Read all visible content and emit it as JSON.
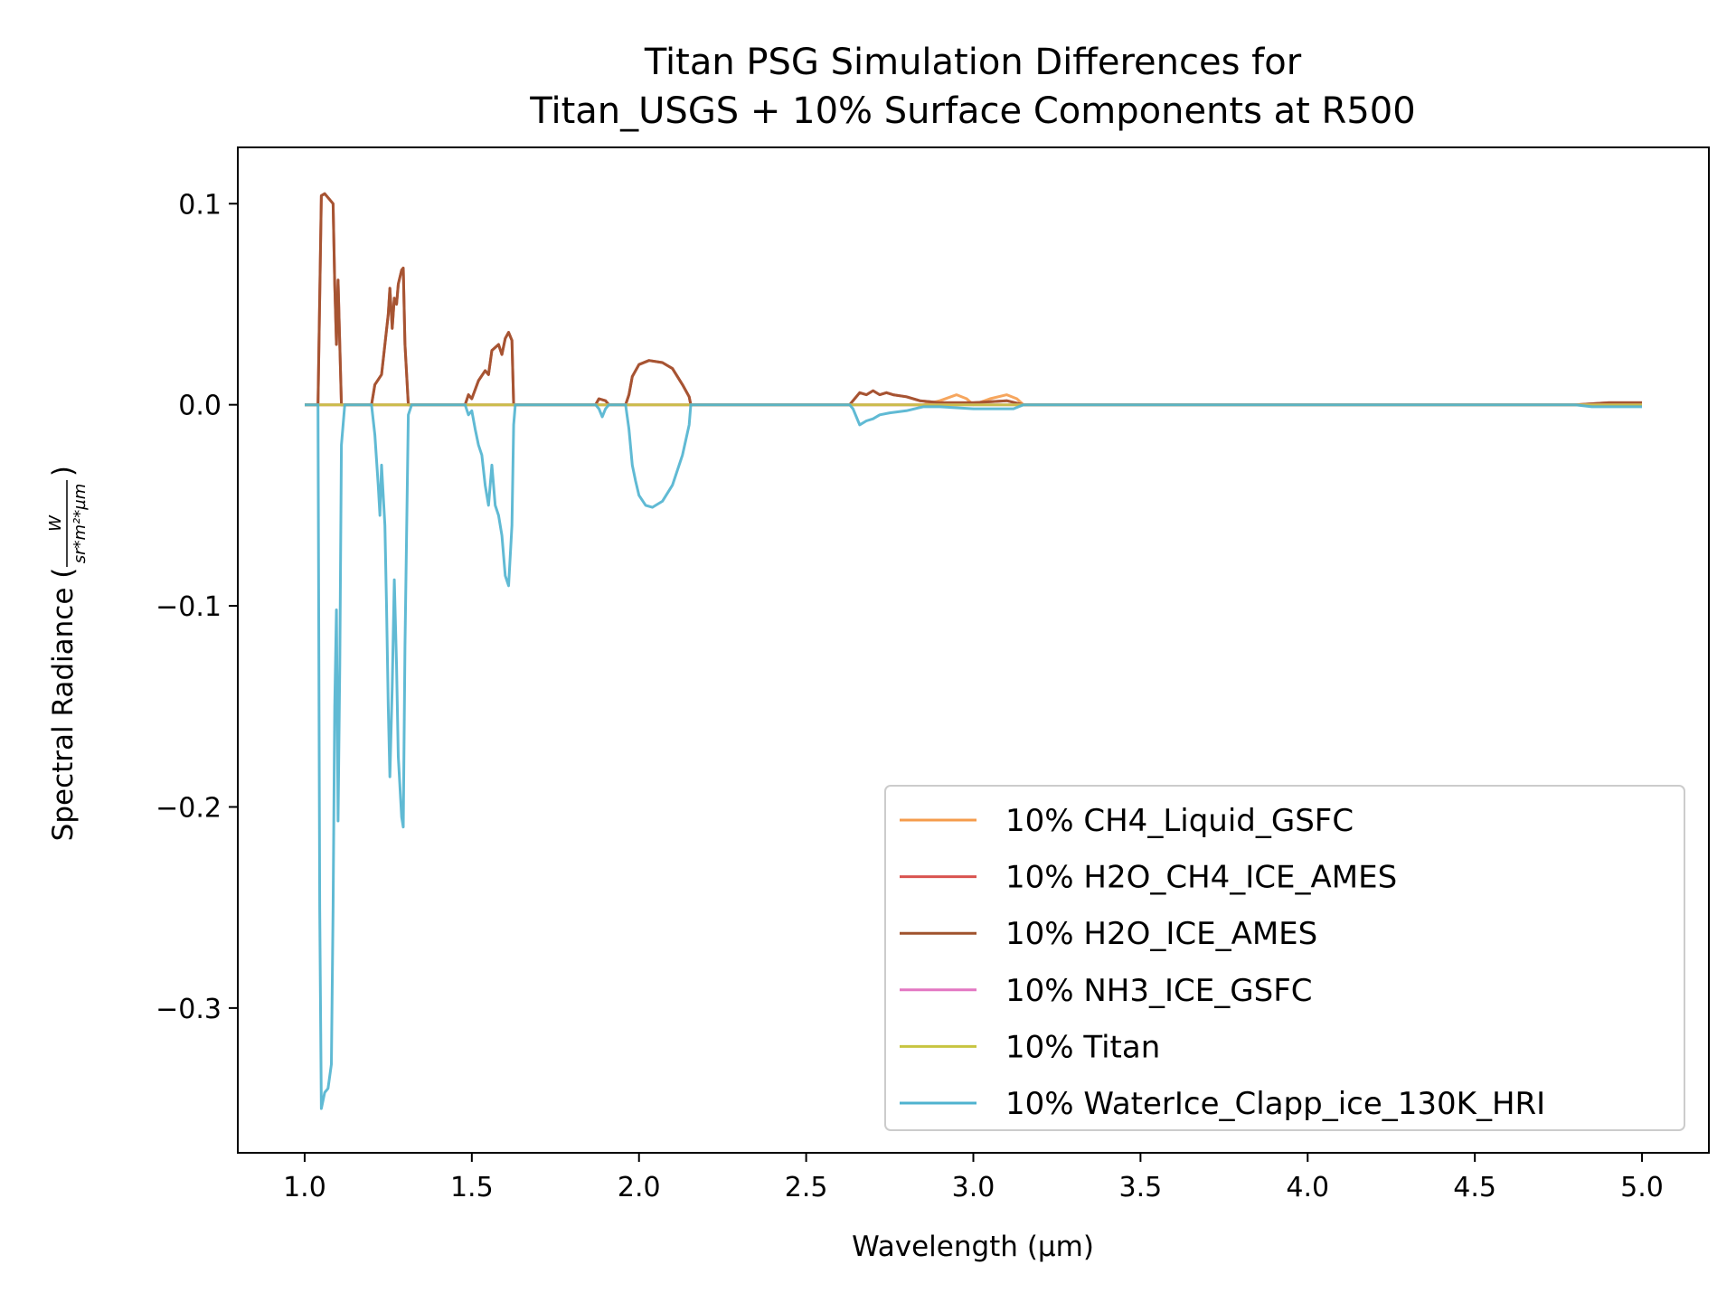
{
  "chart_data": {
    "type": "line",
    "title_lines": [
      "Titan PSG Simulation Differences for",
      "Titan_USGS + 10% Surface Components at R500"
    ],
    "xlabel": "Wavelength (µm)",
    "ylabel_text": "Spectral Radiance (",
    "ylabel_close": ")",
    "ylabel_unit_numerator": "W",
    "ylabel_unit_denominator": "sr*m²*µm",
    "xlim": [
      0.8,
      5.2
    ],
    "ylim": [
      -0.372,
      0.128
    ],
    "xticks": [
      1.0,
      1.5,
      2.0,
      2.5,
      3.0,
      3.5,
      4.0,
      4.5,
      5.0
    ],
    "xtick_labels": [
      "1.0",
      "1.5",
      "2.0",
      "2.5",
      "3.0",
      "3.5",
      "4.0",
      "4.5",
      "5.0"
    ],
    "yticks": [
      0.1,
      0.0,
      -0.1,
      -0.2,
      -0.3
    ],
    "ytick_labels": [
      "0.1",
      "0.0",
      "−0.1",
      "−0.2",
      "−0.3"
    ],
    "grid": false,
    "legend_placement": "lower-right",
    "series": [
      {
        "name": "10% CH4_Liquid_GSFC",
        "color": "#f59c4c",
        "points": [
          [
            1.0,
            0
          ],
          [
            2.85,
            0
          ],
          [
            2.9,
            0.002
          ],
          [
            2.95,
            0.005
          ],
          [
            2.98,
            0.003
          ],
          [
            3.0,
            0.0
          ],
          [
            3.05,
            0.003
          ],
          [
            3.1,
            0.005
          ],
          [
            3.13,
            0.003
          ],
          [
            3.15,
            0
          ],
          [
            4.8,
            0
          ],
          [
            5.0,
            0
          ]
        ]
      },
      {
        "name": "10% H2O_CH4_ICE_AMES",
        "color": "#d9534f",
        "points": [
          [
            1.0,
            0
          ],
          [
            1.04,
            0
          ],
          [
            1.05,
            0.104
          ],
          [
            1.06,
            0.105
          ],
          [
            1.075,
            0.102
          ],
          [
            1.085,
            0.1
          ],
          [
            1.09,
            0.06
          ],
          [
            1.095,
            0.03
          ],
          [
            1.1,
            0.062
          ],
          [
            1.105,
            0.03
          ],
          [
            1.11,
            0
          ],
          [
            1.2,
            0
          ],
          [
            1.21,
            0.01
          ],
          [
            1.23,
            0.015
          ],
          [
            1.24,
            0.03
          ],
          [
            1.25,
            0.045
          ],
          [
            1.255,
            0.058
          ],
          [
            1.262,
            0.038
          ],
          [
            1.268,
            0.053
          ],
          [
            1.275,
            0.05
          ],
          [
            1.28,
            0.06
          ],
          [
            1.29,
            0.067
          ],
          [
            1.295,
            0.068
          ],
          [
            1.3,
            0.03
          ],
          [
            1.31,
            0
          ],
          [
            1.48,
            0
          ],
          [
            1.49,
            0.005
          ],
          [
            1.5,
            0.003
          ],
          [
            1.52,
            0.012
          ],
          [
            1.54,
            0.017
          ],
          [
            1.55,
            0.015
          ],
          [
            1.56,
            0.027
          ],
          [
            1.58,
            0.03
          ],
          [
            1.59,
            0.025
          ],
          [
            1.6,
            0.033
          ],
          [
            1.61,
            0.036
          ],
          [
            1.62,
            0.032
          ],
          [
            1.625,
            0
          ],
          [
            1.87,
            0
          ],
          [
            1.88,
            0.003
          ],
          [
            1.9,
            0.002
          ],
          [
            1.91,
            0
          ],
          [
            1.96,
            0
          ],
          [
            1.97,
            0.005
          ],
          [
            1.98,
            0.014
          ],
          [
            2.0,
            0.02
          ],
          [
            2.03,
            0.022
          ],
          [
            2.07,
            0.021
          ],
          [
            2.1,
            0.018
          ],
          [
            2.13,
            0.01
          ],
          [
            2.15,
            0.004
          ],
          [
            2.155,
            0
          ],
          [
            2.63,
            0
          ],
          [
            2.64,
            0.002
          ],
          [
            2.66,
            0.006
          ],
          [
            2.68,
            0.005
          ],
          [
            2.7,
            0.007
          ],
          [
            2.72,
            0.005
          ],
          [
            2.74,
            0.006
          ],
          [
            2.76,
            0.005
          ],
          [
            2.8,
            0.004
          ],
          [
            2.84,
            0.002
          ],
          [
            2.9,
            0.001
          ],
          [
            3.0,
            0.001
          ],
          [
            3.1,
            0.002
          ],
          [
            3.15,
            0
          ],
          [
            4.8,
            0
          ],
          [
            4.9,
            0.001
          ],
          [
            5.0,
            0.001
          ]
        ]
      },
      {
        "name": "10% H2O_ICE_AMES",
        "color": "#a0522d",
        "points": [
          [
            1.0,
            0
          ],
          [
            1.04,
            0
          ],
          [
            1.05,
            0.104
          ],
          [
            1.06,
            0.105
          ],
          [
            1.075,
            0.102
          ],
          [
            1.085,
            0.1
          ],
          [
            1.09,
            0.06
          ],
          [
            1.095,
            0.03
          ],
          [
            1.1,
            0.062
          ],
          [
            1.105,
            0.03
          ],
          [
            1.11,
            0
          ],
          [
            1.2,
            0
          ],
          [
            1.21,
            0.01
          ],
          [
            1.23,
            0.015
          ],
          [
            1.24,
            0.03
          ],
          [
            1.25,
            0.045
          ],
          [
            1.255,
            0.058
          ],
          [
            1.262,
            0.038
          ],
          [
            1.268,
            0.053
          ],
          [
            1.275,
            0.05
          ],
          [
            1.28,
            0.06
          ],
          [
            1.29,
            0.067
          ],
          [
            1.295,
            0.068
          ],
          [
            1.3,
            0.03
          ],
          [
            1.31,
            0
          ],
          [
            1.48,
            0
          ],
          [
            1.49,
            0.005
          ],
          [
            1.5,
            0.003
          ],
          [
            1.52,
            0.012
          ],
          [
            1.54,
            0.017
          ],
          [
            1.55,
            0.015
          ],
          [
            1.56,
            0.027
          ],
          [
            1.58,
            0.03
          ],
          [
            1.59,
            0.025
          ],
          [
            1.6,
            0.033
          ],
          [
            1.61,
            0.036
          ],
          [
            1.62,
            0.032
          ],
          [
            1.625,
            0
          ],
          [
            1.87,
            0
          ],
          [
            1.88,
            0.003
          ],
          [
            1.9,
            0.002
          ],
          [
            1.91,
            0
          ],
          [
            1.96,
            0
          ],
          [
            1.97,
            0.005
          ],
          [
            1.98,
            0.014
          ],
          [
            2.0,
            0.02
          ],
          [
            2.03,
            0.022
          ],
          [
            2.07,
            0.021
          ],
          [
            2.1,
            0.018
          ],
          [
            2.13,
            0.01
          ],
          [
            2.15,
            0.004
          ],
          [
            2.155,
            0
          ],
          [
            2.63,
            0
          ],
          [
            2.64,
            0.002
          ],
          [
            2.66,
            0.006
          ],
          [
            2.68,
            0.005
          ],
          [
            2.7,
            0.007
          ],
          [
            2.72,
            0.005
          ],
          [
            2.74,
            0.006
          ],
          [
            2.76,
            0.005
          ],
          [
            2.8,
            0.004
          ],
          [
            2.84,
            0.002
          ],
          [
            2.9,
            0.001
          ],
          [
            3.0,
            0.001
          ],
          [
            3.1,
            0.002
          ],
          [
            3.15,
            0
          ],
          [
            4.8,
            0
          ],
          [
            4.9,
            0.001
          ],
          [
            5.0,
            0.001
          ]
        ]
      },
      {
        "name": "10% NH3_ICE_GSFC",
        "color": "#e377c2",
        "points": [
          [
            1.0,
            0
          ],
          [
            5.0,
            0
          ]
        ]
      },
      {
        "name": "10% Titan",
        "color": "#c7c440",
        "points": [
          [
            1.0,
            0
          ],
          [
            5.0,
            0
          ]
        ]
      },
      {
        "name": "10% WaterIce_Clapp_ice_130K_HRI",
        "color": "#4fb3cf",
        "points": [
          [
            1.0,
            0
          ],
          [
            1.04,
            0
          ],
          [
            1.045,
            -0.25
          ],
          [
            1.05,
            -0.35
          ],
          [
            1.06,
            -0.342
          ],
          [
            1.07,
            -0.34
          ],
          [
            1.08,
            -0.328
          ],
          [
            1.085,
            -0.25
          ],
          [
            1.09,
            -0.15
          ],
          [
            1.095,
            -0.102
          ],
          [
            1.1,
            -0.207
          ],
          [
            1.105,
            -0.13
          ],
          [
            1.11,
            -0.02
          ],
          [
            1.12,
            0
          ],
          [
            1.2,
            0
          ],
          [
            1.21,
            -0.015
          ],
          [
            1.22,
            -0.04
          ],
          [
            1.225,
            -0.055
          ],
          [
            1.23,
            -0.03
          ],
          [
            1.24,
            -0.06
          ],
          [
            1.245,
            -0.1
          ],
          [
            1.25,
            -0.15
          ],
          [
            1.255,
            -0.185
          ],
          [
            1.262,
            -0.14
          ],
          [
            1.268,
            -0.087
          ],
          [
            1.275,
            -0.13
          ],
          [
            1.28,
            -0.175
          ],
          [
            1.29,
            -0.205
          ],
          [
            1.295,
            -0.21
          ],
          [
            1.3,
            -0.12
          ],
          [
            1.31,
            -0.005
          ],
          [
            1.32,
            0
          ],
          [
            1.48,
            0
          ],
          [
            1.49,
            -0.005
          ],
          [
            1.5,
            -0.003
          ],
          [
            1.51,
            -0.012
          ],
          [
            1.52,
            -0.02
          ],
          [
            1.53,
            -0.025
          ],
          [
            1.54,
            -0.04
          ],
          [
            1.55,
            -0.05
          ],
          [
            1.56,
            -0.03
          ],
          [
            1.57,
            -0.05
          ],
          [
            1.58,
            -0.055
          ],
          [
            1.59,
            -0.065
          ],
          [
            1.6,
            -0.085
          ],
          [
            1.61,
            -0.09
          ],
          [
            1.62,
            -0.06
          ],
          [
            1.625,
            -0.01
          ],
          [
            1.63,
            0
          ],
          [
            1.87,
            0
          ],
          [
            1.88,
            -0.002
          ],
          [
            1.89,
            -0.006
          ],
          [
            1.9,
            -0.002
          ],
          [
            1.91,
            0
          ],
          [
            1.96,
            0
          ],
          [
            1.97,
            -0.012
          ],
          [
            1.98,
            -0.03
          ],
          [
            1.99,
            -0.038
          ],
          [
            2.0,
            -0.045
          ],
          [
            2.02,
            -0.05
          ],
          [
            2.04,
            -0.051
          ],
          [
            2.07,
            -0.048
          ],
          [
            2.1,
            -0.04
          ],
          [
            2.13,
            -0.025
          ],
          [
            2.15,
            -0.01
          ],
          [
            2.155,
            0
          ],
          [
            2.63,
            0
          ],
          [
            2.64,
            -0.002
          ],
          [
            2.65,
            -0.006
          ],
          [
            2.66,
            -0.01
          ],
          [
            2.68,
            -0.008
          ],
          [
            2.7,
            -0.007
          ],
          [
            2.72,
            -0.005
          ],
          [
            2.75,
            -0.004
          ],
          [
            2.8,
            -0.003
          ],
          [
            2.85,
            -0.001
          ],
          [
            2.9,
            -0.001
          ],
          [
            3.0,
            -0.002
          ],
          [
            3.05,
            -0.002
          ],
          [
            3.12,
            -0.002
          ],
          [
            3.15,
            0
          ],
          [
            4.8,
            0
          ],
          [
            4.85,
            -0.001
          ],
          [
            5.0,
            -0.001
          ]
        ]
      }
    ]
  }
}
